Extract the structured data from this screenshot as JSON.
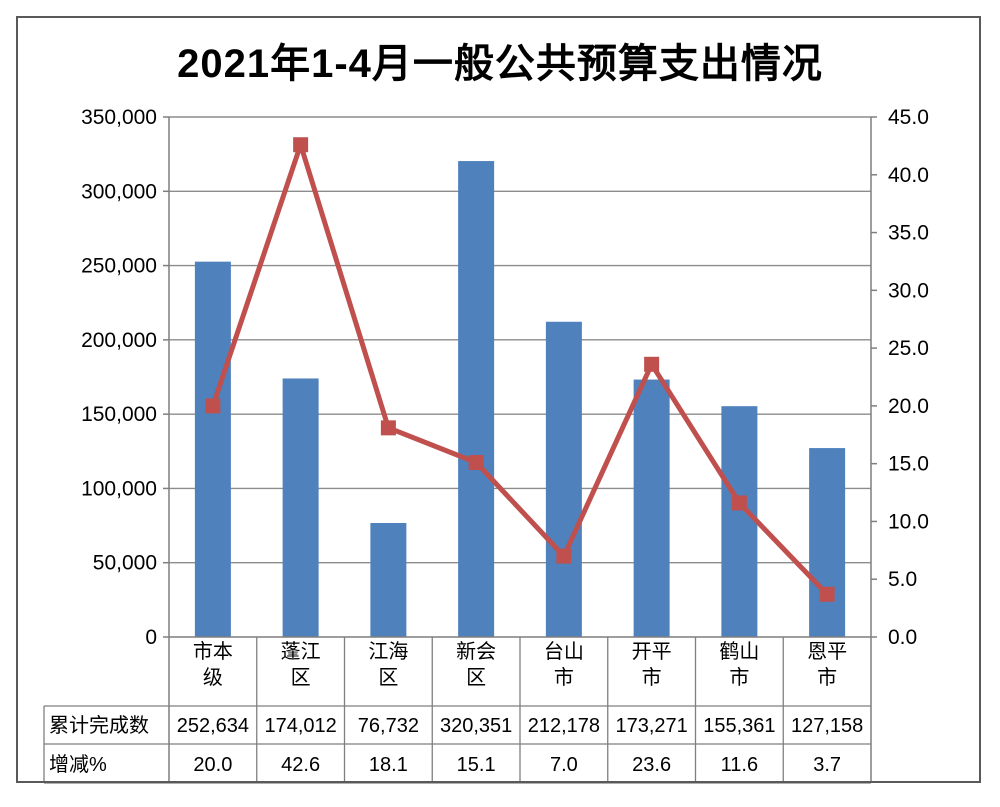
{
  "chart": {
    "title": "2021年1-4月一般公共预算支出情况"
  },
  "colors": {
    "bar": "#4F81BD",
    "line": "#C0504D",
    "grid": "#8C8C8C",
    "axis": "#7F7F7F",
    "table_border": "#7F7F7F",
    "frame": "#595959",
    "text": "#000000",
    "background": "#FFFFFF"
  },
  "chart_data": {
    "type": "bar",
    "subtype": "combo-bar-line-dual-axis",
    "title": "2021年1-4月一般公共预算支出情况",
    "categories": [
      "市本级",
      "蓬江区",
      "江海区",
      "新会区",
      "台山市",
      "开平市",
      "鹤山市",
      "恩平市"
    ],
    "category_lines": [
      [
        "市本",
        "级"
      ],
      [
        "蓬江",
        "区"
      ],
      [
        "江海",
        "区"
      ],
      [
        "新会",
        "区"
      ],
      [
        "台山",
        "市"
      ],
      [
        "开平",
        "市"
      ],
      [
        "鹤山",
        "市"
      ],
      [
        "恩平",
        "市"
      ]
    ],
    "series": [
      {
        "name": "累计完成数",
        "type": "bar",
        "axis": "left",
        "values": [
          252634,
          174012,
          76732,
          320351,
          212178,
          173271,
          155361,
          127158
        ],
        "display": [
          "252,634",
          "174,012",
          "76,732",
          "320,351",
          "212,178",
          "173,271",
          "155,361",
          "127,158"
        ]
      },
      {
        "name": "增减%",
        "type": "line",
        "axis": "right",
        "values": [
          20.0,
          42.6,
          18.1,
          15.1,
          7.0,
          23.6,
          11.6,
          3.7
        ],
        "display": [
          "20.0",
          "42.6",
          "18.1",
          "15.1",
          "7.0",
          "23.6",
          "11.6",
          "3.7"
        ]
      }
    ],
    "left_axis": {
      "min": 0,
      "max": 350000,
      "step": 50000,
      "tick_labels": [
        "0",
        "50,000",
        "100,000",
        "150,000",
        "200,000",
        "250,000",
        "300,000",
        "350,000"
      ]
    },
    "right_axis": {
      "min": 0,
      "max": 45,
      "step": 5,
      "tick_labels": [
        "0.0",
        "5.0",
        "10.0",
        "15.0",
        "20.0",
        "25.0",
        "30.0",
        "35.0",
        "40.0",
        "45.0"
      ]
    },
    "grid": true,
    "legend": "none",
    "data_table": {
      "row_labels": [
        "累计完成数",
        "增减%"
      ]
    }
  }
}
